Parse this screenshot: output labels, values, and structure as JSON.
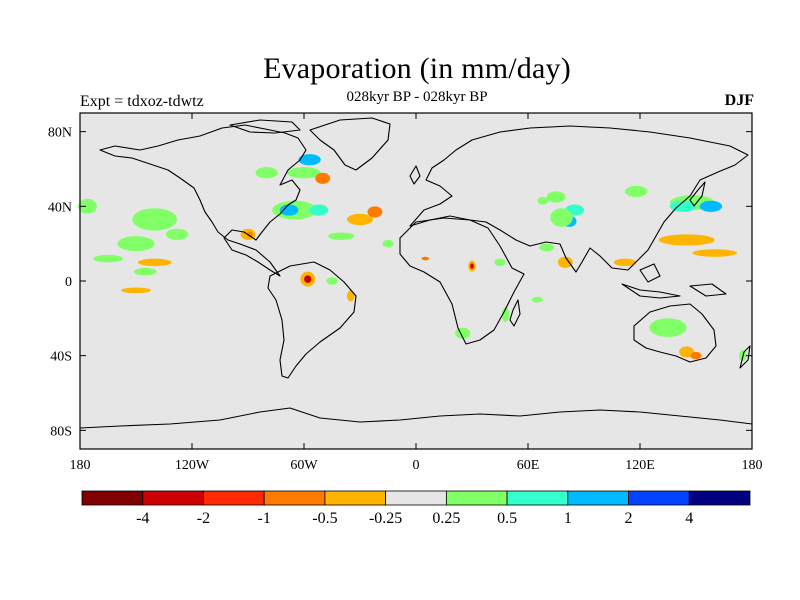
{
  "title": "Evaporation (in mm/day)",
  "subtitle": "028kyr BP - 028kyr BP",
  "left_label": "Expt = tdxoz-tdwtz",
  "right_label": "DJF",
  "map": {
    "projection": "equirectangular",
    "lon_range": [
      -180,
      180
    ],
    "lat_range": [
      -90,
      90
    ],
    "background_color": "#e6e6e6",
    "coastline_color": "#000000"
  },
  "lat_ticks": [
    {
      "lat": 80,
      "label": "80N"
    },
    {
      "lat": 40,
      "label": "40N"
    },
    {
      "lat": 0,
      "label": "0"
    },
    {
      "lat": -40,
      "label": "40S"
    },
    {
      "lat": -80,
      "label": "80S"
    }
  ],
  "lon_ticks": [
    {
      "lon": -180,
      "label": "180"
    },
    {
      "lon": -120,
      "label": "120W"
    },
    {
      "lon": -60,
      "label": "60W"
    },
    {
      "lon": 0,
      "label": "0"
    },
    {
      "lon": 60,
      "label": "60E"
    },
    {
      "lon": 120,
      "label": "120E"
    },
    {
      "lon": 180,
      "label": "180"
    }
  ],
  "colorbar": {
    "colors": [
      "#800000",
      "#cc0000",
      "#ff2a00",
      "#ff7a00",
      "#ffb400",
      "#e6e6e6",
      "#80ff66",
      "#33ffcc",
      "#00bbff",
      "#0044ff",
      "#000080"
    ],
    "labels": [
      "-4",
      "-2",
      "-1",
      "-0.5",
      "-0.25",
      "0.25",
      "0.5",
      "1",
      "2",
      "4"
    ]
  },
  "anomalies": [
    {
      "lon": -176,
      "lat": 40,
      "rx": 5,
      "ry": 4,
      "color": "#80ff66"
    },
    {
      "lon": -140,
      "lat": 33,
      "rx": 12,
      "ry": 6,
      "color": "#80ff66"
    },
    {
      "lon": -150,
      "lat": 20,
      "rx": 10,
      "ry": 4,
      "color": "#80ff66"
    },
    {
      "lon": -128,
      "lat": 25,
      "rx": 6,
      "ry": 3,
      "color": "#80ff66"
    },
    {
      "lon": -140,
      "lat": 10,
      "rx": 9,
      "ry": 2,
      "color": "#ffb400"
    },
    {
      "lon": -165,
      "lat": 12,
      "rx": 8,
      "ry": 2,
      "color": "#80ff66"
    },
    {
      "lon": -145,
      "lat": 5,
      "rx": 6,
      "ry": 2,
      "color": "#80ff66"
    },
    {
      "lon": -150,
      "lat": -5,
      "rx": 8,
      "ry": 1.5,
      "color": "#ffb400"
    },
    {
      "lon": -90,
      "lat": 25,
      "rx": 4,
      "ry": 3,
      "color": "#ffb400"
    },
    {
      "lon": -89,
      "lat": 25,
      "rx": 1.5,
      "ry": 1.5,
      "color": "#ff7a00"
    },
    {
      "lon": -65,
      "lat": 38,
      "rx": 12,
      "ry": 5,
      "color": "#80ff66"
    },
    {
      "lon": -68,
      "lat": 38,
      "rx": 5,
      "ry": 3,
      "color": "#00bbff"
    },
    {
      "lon": -52,
      "lat": 38,
      "rx": 5,
      "ry": 3,
      "color": "#33ffcc"
    },
    {
      "lon": -30,
      "lat": 33,
      "rx": 7,
      "ry": 3,
      "color": "#ffb400"
    },
    {
      "lon": -22,
      "lat": 37,
      "rx": 4,
      "ry": 3,
      "color": "#ff7a00"
    },
    {
      "lon": -40,
      "lat": 24,
      "rx": 7,
      "ry": 2,
      "color": "#80ff66"
    },
    {
      "lon": -57,
      "lat": 65,
      "rx": 6,
      "ry": 3,
      "color": "#00bbff"
    },
    {
      "lon": -60,
      "lat": 58,
      "rx": 9,
      "ry": 3,
      "color": "#80ff66"
    },
    {
      "lon": -50,
      "lat": 55,
      "rx": 4,
      "ry": 3,
      "color": "#ff7a00"
    },
    {
      "lon": -80,
      "lat": 58,
      "rx": 6,
      "ry": 3,
      "color": "#80ff66"
    },
    {
      "lon": -58,
      "lat": 1,
      "rx": 4,
      "ry": 4,
      "color": "#ffb400"
    },
    {
      "lon": -58,
      "lat": 1,
      "rx": 2,
      "ry": 2,
      "color": "#cc0000"
    },
    {
      "lon": -45,
      "lat": 0,
      "rx": 3,
      "ry": 2,
      "color": "#80ff66"
    },
    {
      "lon": -35,
      "lat": -8,
      "rx": 2,
      "ry": 3,
      "color": "#ffb400"
    },
    {
      "lon": -15,
      "lat": 20,
      "rx": 3,
      "ry": 2,
      "color": "#80ff66"
    },
    {
      "lon": 5,
      "lat": 12,
      "rx": 2,
      "ry": 1,
      "color": "#ff7a00"
    },
    {
      "lon": 30,
      "lat": 8,
      "rx": 2,
      "ry": 3,
      "color": "#ffb400"
    },
    {
      "lon": 30,
      "lat": 8,
      "rx": 1,
      "ry": 1.5,
      "color": "#cc0000"
    },
    {
      "lon": 45,
      "lat": 10,
      "rx": 3,
      "ry": 2,
      "color": "#80ff66"
    },
    {
      "lon": 85,
      "lat": 38,
      "rx": 5,
      "ry": 3,
      "color": "#33ffcc"
    },
    {
      "lon": 82,
      "lat": 32,
      "rx": 4,
      "ry": 3,
      "color": "#00bbff"
    },
    {
      "lon": 78,
      "lat": 34,
      "rx": 6,
      "ry": 5,
      "color": "#80ff66"
    },
    {
      "lon": 68,
      "lat": 43,
      "rx": 3,
      "ry": 2,
      "color": "#80ff66"
    },
    {
      "lon": 75,
      "lat": 45,
      "rx": 5,
      "ry": 3,
      "color": "#80ff66"
    },
    {
      "lon": 80,
      "lat": 10,
      "rx": 4,
      "ry": 3,
      "color": "#ffb400"
    },
    {
      "lon": 70,
      "lat": 18,
      "rx": 4,
      "ry": 2,
      "color": "#80ff66"
    },
    {
      "lon": 118,
      "lat": 48,
      "rx": 6,
      "ry": 3,
      "color": "#80ff66"
    },
    {
      "lon": 148,
      "lat": 42,
      "rx": 12,
      "ry": 4,
      "color": "#80ff66"
    },
    {
      "lon": 143,
      "lat": 40,
      "rx": 7,
      "ry": 3,
      "color": "#33ffcc"
    },
    {
      "lon": 158,
      "lat": 40,
      "rx": 6,
      "ry": 3,
      "color": "#00bbff"
    },
    {
      "lon": 145,
      "lat": 22,
      "rx": 15,
      "ry": 3,
      "color": "#ffb400"
    },
    {
      "lon": 160,
      "lat": 15,
      "rx": 12,
      "ry": 2,
      "color": "#ffb400"
    },
    {
      "lon": 112,
      "lat": 10,
      "rx": 6,
      "ry": 2,
      "color": "#ffb400"
    },
    {
      "lon": 135,
      "lat": -25,
      "rx": 10,
      "ry": 5,
      "color": "#80ff66"
    },
    {
      "lon": 145,
      "lat": -38,
      "rx": 4,
      "ry": 3,
      "color": "#ffb400"
    },
    {
      "lon": 150,
      "lat": -40,
      "rx": 3,
      "ry": 2,
      "color": "#ff7a00"
    },
    {
      "lon": 175,
      "lat": -40,
      "rx": 2,
      "ry": 3,
      "color": "#80ff66"
    },
    {
      "lon": 25,
      "lat": -28,
      "rx": 4,
      "ry": 3,
      "color": "#80ff66"
    },
    {
      "lon": 48,
      "lat": -18,
      "rx": 2,
      "ry": 4,
      "color": "#80ff66"
    },
    {
      "lon": 65,
      "lat": -10,
      "rx": 3,
      "ry": 1.5,
      "color": "#80ff66"
    }
  ]
}
